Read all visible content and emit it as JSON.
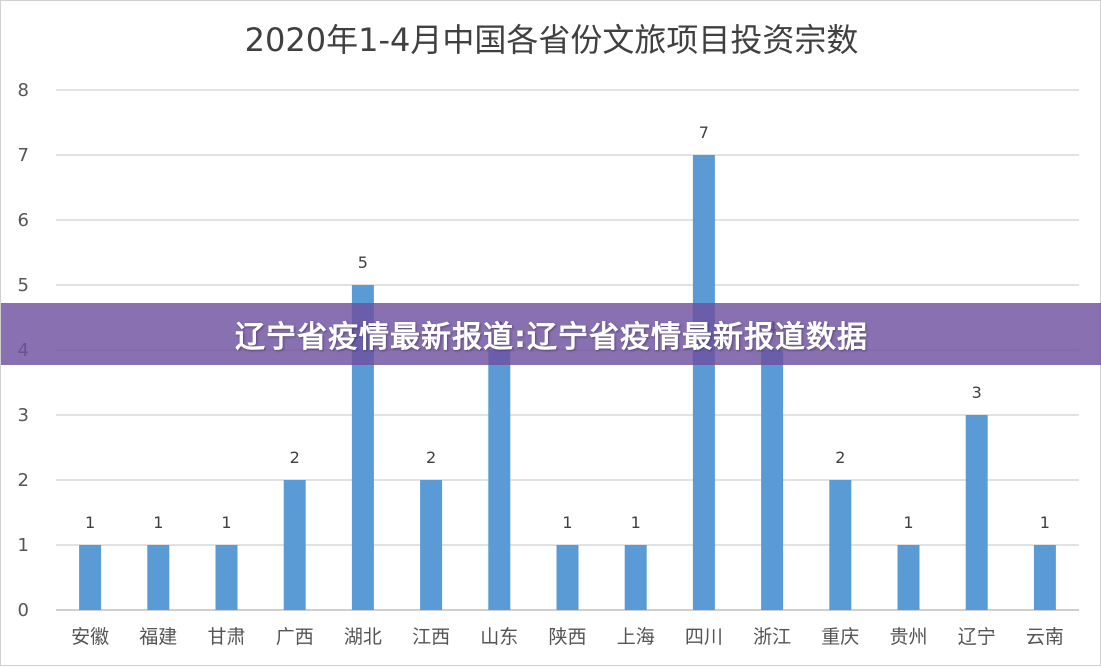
{
  "chart_data": {
    "type": "bar",
    "title": "2020年1-4月中国各省份文旅项目投资宗数",
    "categories": [
      "安徽",
      "福建",
      "甘肃",
      "广西",
      "湖北",
      "江西",
      "山东",
      "陕西",
      "上海",
      "四川",
      "浙江",
      "重庆",
      "贵州",
      "辽宁",
      "云南"
    ],
    "values": [
      1,
      1,
      1,
      2,
      5,
      2,
      4,
      1,
      1,
      7,
      4,
      2,
      1,
      3,
      1
    ],
    "ylim": [
      0,
      8
    ],
    "yticks": [
      0,
      1,
      2,
      3,
      4,
      5,
      6,
      7,
      8
    ],
    "grid": true,
    "bar_color": "#5b9bd5",
    "data_labels": true
  },
  "banner": {
    "text": "辽宁省疫情最新报道:辽宁省疫情最新报道数据",
    "color": "#6e50a0"
  }
}
